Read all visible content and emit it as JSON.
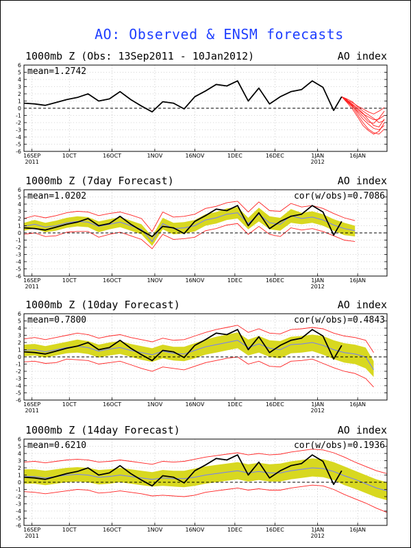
{
  "title": "AO: Observed & ENSM forecasts",
  "colors": {
    "title": "#1f3fff",
    "observed": "#000000",
    "spread": "#d8d820",
    "envelope": "#ff2020",
    "mean_line": "#6f7bff",
    "grid": "#aaaaaa"
  },
  "x_ticks": [
    {
      "day": 3,
      "label": "16SEP",
      "sub": "2011"
    },
    {
      "day": 17,
      "label": "10CT",
      "sub": ""
    },
    {
      "day": 33,
      "label": "16OCT",
      "sub": ""
    },
    {
      "day": 49,
      "label": "1NOV",
      "sub": ""
    },
    {
      "day": 64,
      "label": "16NOV",
      "sub": ""
    },
    {
      "day": 79,
      "label": "1DEC",
      "sub": ""
    },
    {
      "day": 94,
      "label": "16DEC",
      "sub": ""
    },
    {
      "day": 110,
      "label": "1JAN",
      "sub": "2012"
    },
    {
      "day": 125,
      "label": "16JAN",
      "sub": ""
    }
  ],
  "y_ticks": [
    6,
    5,
    4,
    3,
    2,
    1,
    0,
    -1,
    -2,
    -3,
    -4,
    -5,
    -6
  ],
  "chart_data": [
    {
      "type": "line",
      "title": "1000mb Z (Obs: 13Sep2011 - 10Jan2012)",
      "right_label": "AO index",
      "mean_label": "mean=1.2742",
      "cor_label": "",
      "ylim": [
        -6,
        6
      ],
      "xlim_days": [
        0,
        136
      ],
      "observed": {
        "x": [
          0,
          4,
          8,
          12,
          16,
          20,
          24,
          28,
          32,
          36,
          40,
          44,
          48,
          52,
          56,
          60,
          64,
          68,
          72,
          76,
          80,
          84,
          88,
          92,
          96,
          100,
          104,
          108,
          112,
          116,
          119
        ],
        "y": [
          0.7,
          0.6,
          0.4,
          0.8,
          1.2,
          1.5,
          2.0,
          1.0,
          1.3,
          2.3,
          1.2,
          0.3,
          -0.5,
          0.9,
          0.7,
          -0.1,
          1.6,
          2.4,
          3.3,
          3.1,
          3.8,
          1.0,
          2.8,
          0.6,
          1.6,
          2.3,
          2.6,
          3.8,
          2.9,
          -0.3,
          1.6
        ]
      },
      "ensemble": {
        "x": [
          119,
          121,
          123,
          125,
          127,
          129,
          131,
          133,
          135
        ],
        "members": [
          [
            1.6,
            1.1,
            0.8,
            0.3,
            -0.1,
            -0.5,
            -0.8,
            -0.4,
            0.1
          ],
          [
            1.6,
            1.0,
            0.5,
            -0.2,
            -0.8,
            -1.2,
            -1.6,
            -1.5,
            -1.0
          ],
          [
            1.6,
            1.2,
            0.4,
            -0.6,
            -1.5,
            -2.2,
            -2.8,
            -3.0,
            -2.4
          ],
          [
            1.6,
            0.9,
            0.2,
            -0.9,
            -2.0,
            -2.9,
            -3.4,
            -3.6,
            -2.9
          ],
          [
            1.6,
            1.3,
            0.9,
            0.2,
            -0.4,
            -0.9,
            -1.4,
            -2.0,
            -1.7
          ],
          [
            1.6,
            0.8,
            -0.1,
            -1.2,
            -2.4,
            -3.1,
            -3.6,
            -3.2,
            -2.0
          ],
          [
            1.6,
            1.1,
            0.6,
            0.0,
            -0.7,
            -1.6,
            -2.4,
            -2.6,
            -1.5
          ],
          [
            1.6,
            1.0,
            0.3,
            -0.4,
            -1.1,
            -1.9,
            -2.1,
            -1.4,
            -0.4
          ]
        ]
      }
    },
    {
      "type": "line",
      "title": "1000mb Z (7day Forecast)",
      "right_label": "AO index",
      "mean_label": "mean=1.0202",
      "cor_label": "cor(w/obs)=0.7086",
      "ylim": [
        -6,
        6
      ],
      "xlim_days": [
        0,
        136
      ],
      "observed": {
        "x": [
          0,
          4,
          8,
          12,
          16,
          20,
          24,
          28,
          32,
          36,
          40,
          44,
          48,
          52,
          56,
          60,
          64,
          68,
          72,
          76,
          80,
          84,
          88,
          92,
          96,
          100,
          104,
          108,
          112,
          116,
          119
        ],
        "y": [
          0.7,
          0.6,
          0.4,
          0.8,
          1.2,
          1.5,
          2.0,
          1.0,
          1.3,
          2.3,
          1.2,
          0.3,
          -0.5,
          0.9,
          0.7,
          -0.1,
          1.6,
          2.4,
          3.3,
          3.1,
          3.8,
          1.0,
          2.8,
          0.6,
          1.6,
          2.3,
          2.6,
          3.8,
          2.9,
          -0.3,
          1.6
        ]
      },
      "forecast": {
        "x": [
          0,
          4,
          8,
          12,
          16,
          20,
          24,
          28,
          32,
          36,
          40,
          44,
          48,
          52,
          56,
          60,
          64,
          68,
          72,
          76,
          80,
          84,
          88,
          92,
          96,
          100,
          104,
          108,
          112,
          116,
          120,
          124
        ],
        "mean": [
          0.9,
          1.2,
          0.8,
          1.0,
          1.4,
          1.6,
          1.5,
          0.9,
          1.2,
          1.5,
          1.0,
          0.5,
          -1.2,
          1.3,
          0.6,
          0.7,
          1.0,
          1.8,
          2.1,
          2.6,
          2.8,
          1.3,
          2.6,
          1.4,
          1.2,
          2.4,
          2.0,
          2.2,
          1.8,
          1.1,
          0.6,
          0.3
        ],
        "lower": [
          0.3,
          0.6,
          0.1,
          0.3,
          0.7,
          0.9,
          0.8,
          0.1,
          0.5,
          0.8,
          0.3,
          -0.2,
          -1.8,
          0.5,
          -0.2,
          -0.1,
          0.2,
          1.0,
          1.3,
          1.8,
          2.0,
          0.5,
          1.6,
          0.5,
          0.3,
          1.4,
          1.2,
          1.4,
          1.0,
          0.3,
          -0.3,
          -0.5
        ],
        "upper": [
          1.4,
          1.8,
          1.4,
          1.7,
          2.1,
          2.3,
          2.2,
          1.6,
          1.9,
          2.2,
          1.7,
          1.2,
          -0.5,
          2.1,
          1.4,
          1.5,
          1.8,
          2.6,
          2.9,
          3.4,
          3.6,
          2.1,
          3.5,
          2.3,
          2.1,
          3.3,
          2.8,
          3.0,
          2.6,
          1.9,
          1.4,
          1.0
        ],
        "min": [
          -0.2,
          0.0,
          -0.5,
          -0.4,
          0.1,
          0.2,
          0.2,
          -0.6,
          -0.2,
          0.1,
          -0.4,
          -0.9,
          -2.2,
          -0.2,
          -0.9,
          -0.8,
          -0.6,
          0.3,
          0.6,
          1.1,
          1.3,
          -0.2,
          0.9,
          -0.2,
          -0.5,
          0.7,
          0.4,
          0.6,
          0.2,
          -0.4,
          -1.0,
          -1.2
        ],
        "max": [
          2.0,
          2.4,
          2.1,
          2.4,
          2.8,
          3.0,
          2.9,
          2.4,
          2.7,
          2.9,
          2.5,
          2.0,
          0.2,
          2.9,
          2.2,
          2.3,
          2.6,
          3.4,
          3.7,
          4.2,
          4.4,
          2.9,
          4.3,
          3.1,
          3.0,
          4.1,
          3.6,
          3.8,
          3.4,
          2.7,
          2.1,
          1.7
        ]
      }
    },
    {
      "type": "line",
      "title": "1000mb Z (10day Forecast)",
      "right_label": "AO index",
      "mean_label": "mean=0.7800",
      "cor_label": "cor(w/obs)=0.4843",
      "ylim": [
        -6,
        6
      ],
      "xlim_days": [
        0,
        136
      ],
      "observed": {
        "x": [
          0,
          4,
          8,
          12,
          16,
          20,
          24,
          28,
          32,
          36,
          40,
          44,
          48,
          52,
          56,
          60,
          64,
          68,
          72,
          76,
          80,
          84,
          88,
          92,
          96,
          100,
          104,
          108,
          112,
          116,
          119
        ],
        "y": [
          0.7,
          0.6,
          0.4,
          0.8,
          1.2,
          1.5,
          2.0,
          1.0,
          1.3,
          2.3,
          1.2,
          0.3,
          -0.5,
          0.9,
          0.7,
          -0.1,
          1.6,
          2.4,
          3.3,
          3.1,
          3.8,
          1.0,
          2.8,
          0.6,
          1.6,
          2.3,
          2.6,
          3.8,
          2.9,
          -0.3,
          1.6
        ]
      },
      "forecast": {
        "x": [
          0,
          4,
          8,
          12,
          16,
          20,
          24,
          28,
          32,
          36,
          40,
          44,
          48,
          52,
          56,
          60,
          64,
          68,
          72,
          76,
          80,
          84,
          88,
          92,
          96,
          100,
          104,
          108,
          112,
          116,
          120,
          124,
          128,
          131
        ],
        "mean": [
          0.9,
          1.0,
          0.7,
          1.0,
          1.3,
          1.5,
          1.3,
          0.8,
          1.1,
          1.3,
          0.9,
          0.6,
          0.3,
          0.8,
          0.5,
          0.4,
          0.9,
          1.4,
          1.7,
          2.0,
          2.3,
          1.3,
          1.8,
          1.2,
          1.0,
          1.7,
          1.8,
          2.0,
          1.6,
          1.0,
          0.6,
          0.4,
          0.0,
          -1.8
        ],
        "lower": [
          0.1,
          0.2,
          -0.1,
          0.2,
          0.5,
          0.6,
          0.4,
          -0.1,
          0.2,
          0.4,
          0.0,
          -0.4,
          -0.7,
          -0.2,
          -0.5,
          -0.6,
          -0.2,
          0.3,
          0.6,
          0.9,
          1.2,
          0.2,
          0.6,
          0.0,
          -0.2,
          0.5,
          0.6,
          0.8,
          0.3,
          -0.3,
          -0.8,
          -1.0,
          -1.6,
          -2.8
        ],
        "upper": [
          1.7,
          1.8,
          1.5,
          1.8,
          2.1,
          2.4,
          2.2,
          1.7,
          2.0,
          2.2,
          1.8,
          1.5,
          1.2,
          1.7,
          1.4,
          1.4,
          1.9,
          2.4,
          2.8,
          3.1,
          3.4,
          2.4,
          2.9,
          2.3,
          2.2,
          2.8,
          2.9,
          3.1,
          2.9,
          2.3,
          1.9,
          1.7,
          1.3,
          -0.6
        ],
        "min": [
          -0.7,
          -0.6,
          -0.9,
          -0.8,
          -0.3,
          -0.4,
          -0.5,
          -1.0,
          -0.8,
          -0.6,
          -1.1,
          -1.6,
          -2.0,
          -1.4,
          -1.6,
          -1.8,
          -1.3,
          -0.8,
          -0.5,
          -0.2,
          0.0,
          -1.0,
          -0.6,
          -1.3,
          -1.4,
          -0.6,
          -0.5,
          -0.3,
          -0.9,
          -1.5,
          -2.0,
          -2.3,
          -3.0,
          -4.2
        ],
        "max": [
          2.5,
          2.7,
          2.4,
          2.7,
          3.0,
          3.3,
          3.1,
          2.6,
          2.9,
          3.1,
          2.7,
          2.4,
          2.1,
          2.6,
          2.3,
          2.4,
          2.9,
          3.4,
          3.8,
          4.1,
          4.4,
          3.4,
          3.9,
          3.3,
          3.2,
          3.8,
          3.9,
          4.1,
          3.9,
          3.3,
          2.9,
          2.7,
          2.3,
          0.6
        ]
      }
    },
    {
      "type": "line",
      "title": "1000mb Z (14day Forecast)",
      "right_label": "AO index",
      "mean_label": "mean=0.6210",
      "cor_label": "cor(w/obs)=0.1936",
      "ylim": [
        -6,
        6
      ],
      "xlim_days": [
        0,
        136
      ],
      "observed": {
        "x": [
          0,
          4,
          8,
          12,
          16,
          20,
          24,
          28,
          32,
          36,
          40,
          44,
          48,
          52,
          56,
          60,
          64,
          68,
          72,
          76,
          80,
          84,
          88,
          92,
          96,
          100,
          104,
          108,
          112,
          116,
          119
        ],
        "y": [
          0.7,
          0.6,
          0.4,
          0.8,
          1.2,
          1.5,
          2.0,
          1.0,
          1.3,
          2.3,
          1.2,
          0.3,
          -0.5,
          0.9,
          0.7,
          -0.1,
          1.6,
          2.4,
          3.3,
          3.1,
          3.8,
          1.0,
          2.8,
          0.6,
          1.6,
          2.3,
          2.6,
          3.8,
          2.9,
          -0.3,
          1.6
        ]
      },
      "forecast": {
        "x": [
          0,
          4,
          8,
          12,
          16,
          20,
          24,
          28,
          32,
          36,
          40,
          44,
          48,
          52,
          56,
          60,
          64,
          68,
          72,
          76,
          80,
          84,
          88,
          92,
          96,
          100,
          104,
          108,
          112,
          116,
          120,
          124,
          128,
          132,
          136
        ],
        "mean": [
          0.8,
          0.8,
          0.6,
          0.8,
          1.0,
          1.1,
          1.0,
          0.7,
          0.8,
          1.0,
          0.8,
          0.6,
          0.4,
          0.6,
          0.5,
          0.5,
          0.7,
          1.0,
          1.2,
          1.4,
          1.6,
          1.3,
          1.5,
          1.3,
          1.3,
          1.6,
          1.8,
          2.0,
          1.9,
          1.5,
          0.9,
          0.4,
          -0.2,
          -0.8,
          -1.2
        ],
        "lower": [
          -0.2,
          -0.2,
          -0.4,
          -0.2,
          0.0,
          0.1,
          0.0,
          -0.3,
          -0.2,
          0.0,
          -0.2,
          -0.4,
          -0.6,
          -0.5,
          -0.6,
          -0.7,
          -0.5,
          -0.2,
          0.0,
          0.2,
          0.4,
          0.1,
          0.3,
          0.1,
          0.1,
          0.4,
          0.6,
          0.8,
          0.7,
          0.3,
          -0.4,
          -0.9,
          -1.5,
          -2.1,
          -2.5
        ],
        "upper": [
          1.8,
          1.8,
          1.6,
          1.8,
          2.0,
          2.1,
          2.0,
          1.7,
          1.8,
          2.0,
          1.8,
          1.6,
          1.4,
          1.7,
          1.6,
          1.6,
          1.9,
          2.2,
          2.4,
          2.6,
          2.8,
          2.5,
          2.7,
          2.5,
          2.6,
          2.9,
          3.1,
          3.3,
          3.2,
          2.8,
          2.2,
          1.6,
          1.0,
          0.4,
          0.0
        ],
        "min": [
          -1.3,
          -1.4,
          -1.6,
          -1.4,
          -1.2,
          -1.0,
          -1.1,
          -1.5,
          -1.4,
          -1.2,
          -1.4,
          -1.6,
          -1.9,
          -1.8,
          -1.9,
          -2.0,
          -1.8,
          -1.4,
          -1.2,
          -1.0,
          -0.8,
          -1.1,
          -0.9,
          -1.1,
          -1.1,
          -0.8,
          -0.6,
          -0.4,
          -0.5,
          -1.0,
          -1.7,
          -2.3,
          -2.9,
          -3.6,
          -4.2
        ],
        "max": [
          2.8,
          2.9,
          2.7,
          2.9,
          3.1,
          3.2,
          3.1,
          2.8,
          2.9,
          3.1,
          2.9,
          2.7,
          2.5,
          2.9,
          2.8,
          2.9,
          3.2,
          3.5,
          3.7,
          3.9,
          4.1,
          3.8,
          4.0,
          3.8,
          3.9,
          4.2,
          4.4,
          4.6,
          4.5,
          4.1,
          3.5,
          2.8,
          2.2,
          1.6,
          1.2
        ]
      }
    }
  ]
}
